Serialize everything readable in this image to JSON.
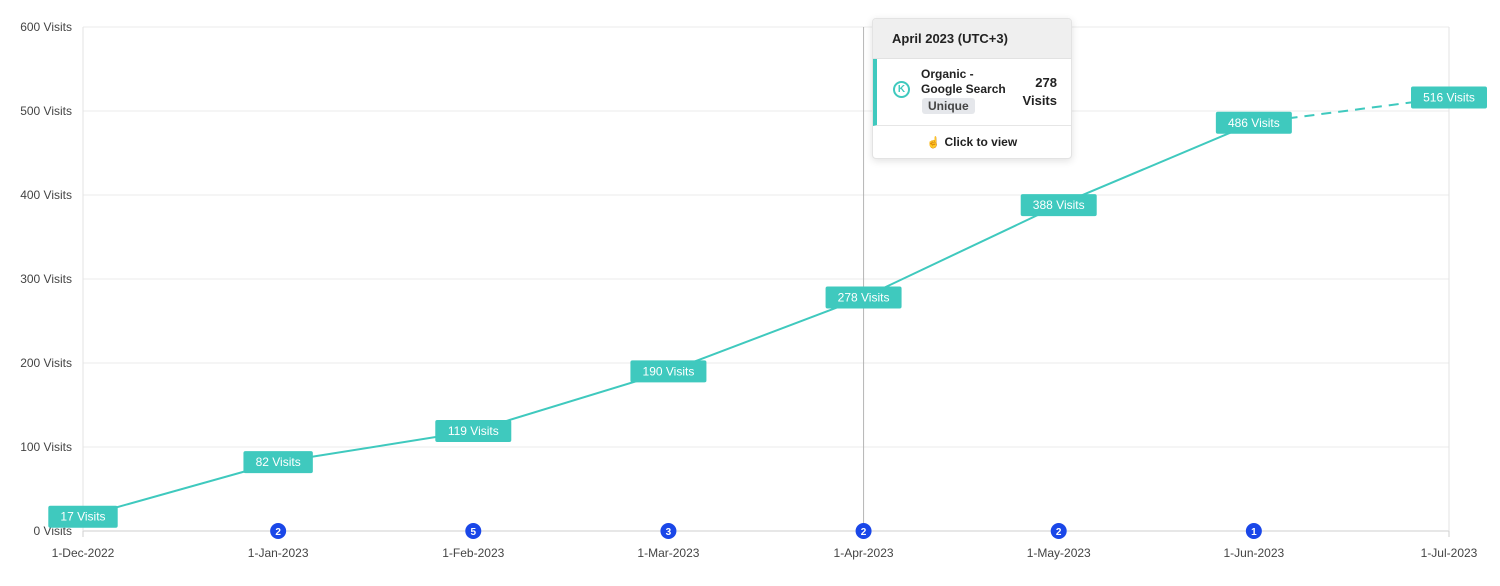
{
  "chart_data": {
    "type": "line",
    "x": [
      "1-Dec-2022",
      "1-Jan-2023",
      "1-Feb-2023",
      "1-Mar-2023",
      "1-Apr-2023",
      "1-May-2023",
      "1-Jun-2023",
      "1-Jul-2023"
    ],
    "series": [
      {
        "values": [
          17,
          82,
          119,
          190,
          278,
          388,
          486,
          516
        ],
        "labels": [
          "17 Visits",
          "82 Visits",
          "119 Visits",
          "190 Visits",
          "278 Visits",
          "388 Visits",
          "486 Visits",
          "516 Visits"
        ],
        "color": "#3fc9be",
        "dashed_from_index": 6
      }
    ],
    "ylim": [
      0,
      600
    ],
    "y_ticks": [
      "0 Visits",
      "100 Visits",
      "200 Visits",
      "300 Visits",
      "400 Visits",
      "500 Visits",
      "600 Visits"
    ],
    "grid": true,
    "annotations": [
      {
        "x_index": 1,
        "label": "2"
      },
      {
        "x_index": 2,
        "label": "5"
      },
      {
        "x_index": 3,
        "label": "3"
      },
      {
        "x_index": 4,
        "label": "2"
      },
      {
        "x_index": 5,
        "label": "2"
      },
      {
        "x_index": 6,
        "label": "1"
      }
    ],
    "annotation_color": "#1a47e8",
    "hover_index": 4
  },
  "tooltip": {
    "title": "April 2023 (UTC+3)",
    "icon_letter": "K",
    "source_line1": "Organic -",
    "source_line2": "Google Search",
    "tag": "Unique",
    "value_number": "278",
    "value_unit": "Visits",
    "action": "Click to view",
    "action_icon": "hand-pointer-icon"
  }
}
